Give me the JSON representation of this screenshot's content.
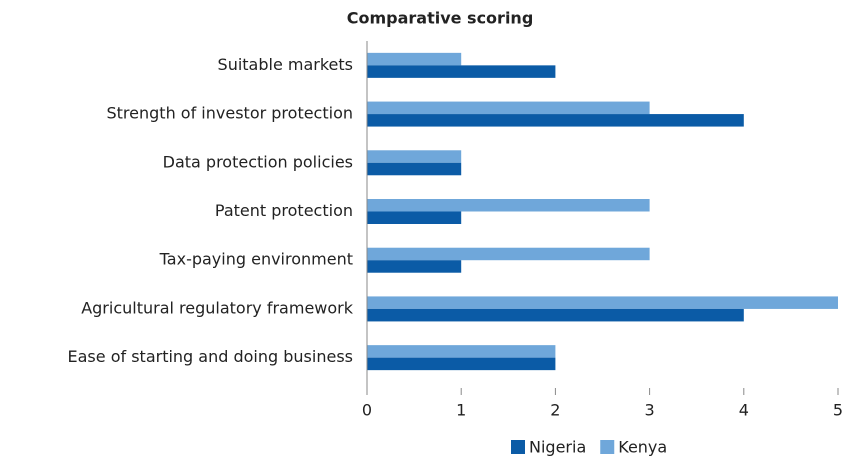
{
  "chart_data": {
    "type": "bar",
    "orientation": "horizontal",
    "title": "Comparative scoring",
    "categories": [
      "Suitable markets",
      "Strength of investor protection",
      "Data protection policies",
      "Patent protection",
      "Tax-paying environment",
      "Agricultural regulatory framework",
      "Ease of starting and doing business"
    ],
    "series": [
      {
        "name": "Nigeria",
        "color": "#0b5ba6",
        "values": [
          2,
          4,
          1,
          1,
          1,
          4,
          2
        ]
      },
      {
        "name": "Kenya",
        "color": "#6fa7da",
        "values": [
          1,
          3,
          1,
          3,
          3,
          5,
          2
        ]
      }
    ],
    "xlim": [
      0,
      5
    ],
    "xticks": [
      0,
      1,
      2,
      3,
      4,
      5
    ],
    "legend": "bottom"
  }
}
